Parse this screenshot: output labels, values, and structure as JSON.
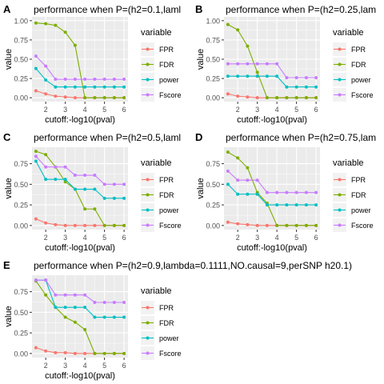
{
  "series_colors": {
    "FPR": "#F8766D",
    "FDR": "#7CAE00",
    "power": "#00BFC4",
    "Fscore": "#C77CFF"
  },
  "legend_title": "variable",
  "chart_data": [
    {
      "type": "line",
      "panel_letter": "A",
      "title": "performance when P=(h2=0.1,laml",
      "xlabel": "cutoff:-log10(pval)",
      "ylabel": "value",
      "xlim": [
        1.3,
        6.2
      ],
      "ylim": [
        -0.05,
        1.05
      ],
      "xticks": [
        2,
        3,
        4,
        5,
        6
      ],
      "yticks": [
        0.0,
        0.25,
        0.5,
        0.75,
        1.0
      ],
      "ytick_labels": [
        "0.00",
        "0.25",
        "0.50",
        "0.75",
        "1.00"
      ],
      "x": [
        1.5,
        2,
        2.5,
        3,
        3.5,
        4,
        4.5,
        5,
        5.5,
        6
      ],
      "series": [
        {
          "name": "FPR",
          "values": [
            0.09,
            0.05,
            0.02,
            0.01,
            0.0,
            0.0,
            0.0,
            0.0,
            0.0,
            0.0
          ]
        },
        {
          "name": "FDR",
          "values": [
            0.97,
            0.96,
            0.94,
            0.85,
            0.68,
            0.0,
            0.0,
            0.0,
            0.0,
            0.0
          ]
        },
        {
          "name": "power",
          "values": [
            0.38,
            0.23,
            0.14,
            0.14,
            0.14,
            0.14,
            0.14,
            0.14,
            0.14,
            0.14
          ]
        },
        {
          "name": "Fscore",
          "values": [
            0.54,
            0.41,
            0.24,
            0.24,
            0.24,
            0.24,
            0.24,
            0.24,
            0.24,
            0.24
          ]
        }
      ]
    },
    {
      "type": "line",
      "panel_letter": "B",
      "title": "performance when P=(h2=0.25,lam",
      "xlabel": "cutoff:-log10(pval)",
      "ylabel": "value",
      "xlim": [
        1.3,
        6.2
      ],
      "ylim": [
        -0.05,
        1.05
      ],
      "xticks": [
        2,
        3,
        4,
        5,
        6
      ],
      "yticks": [
        0.0,
        0.25,
        0.5,
        0.75,
        1.0
      ],
      "ytick_labels": [
        "0.00",
        "0.25",
        "0.50",
        "0.75",
        "1.00"
      ],
      "x": [
        1.5,
        2,
        2.5,
        3,
        3.5,
        4,
        4.5,
        5,
        5.5,
        6
      ],
      "series": [
        {
          "name": "FPR",
          "values": [
            0.05,
            0.02,
            0.01,
            0.0,
            0.0,
            0.0,
            0.0,
            0.0,
            0.0,
            0.0
          ]
        },
        {
          "name": "FDR",
          "values": [
            0.95,
            0.88,
            0.67,
            0.33,
            0.0,
            0.0,
            0.0,
            0.0,
            0.0,
            0.0
          ]
        },
        {
          "name": "power",
          "values": [
            0.28,
            0.28,
            0.28,
            0.28,
            0.28,
            0.28,
            0.14,
            0.14,
            0.14,
            0.14
          ]
        },
        {
          "name": "Fscore",
          "values": [
            0.44,
            0.44,
            0.44,
            0.44,
            0.44,
            0.44,
            0.26,
            0.26,
            0.26,
            0.26
          ]
        }
      ]
    },
    {
      "type": "line",
      "panel_letter": "C",
      "title": "performance when P=(h2=0.5,laml",
      "xlabel": "cutoff:-log10(pval)",
      "ylabel": "value",
      "xlim": [
        1.3,
        6.2
      ],
      "ylim": [
        -0.05,
        0.95
      ],
      "xticks": [
        2,
        3,
        4,
        5,
        6
      ],
      "yticks": [
        0.0,
        0.25,
        0.5,
        0.75
      ],
      "ytick_labels": [
        "0.00",
        "0.25",
        "0.50",
        "0.75"
      ],
      "x": [
        1.5,
        2,
        2.5,
        3,
        3.5,
        4,
        4.5,
        5,
        5.5,
        6
      ],
      "series": [
        {
          "name": "FPR",
          "values": [
            0.08,
            0.03,
            0.01,
            0.0,
            0.0,
            0.0,
            0.0,
            0.0,
            0.0,
            0.0
          ]
        },
        {
          "name": "FDR",
          "values": [
            0.9,
            0.86,
            0.71,
            0.53,
            0.44,
            0.2,
            0.2,
            0.0,
            0.0,
            0.0
          ]
        },
        {
          "name": "power",
          "values": [
            0.78,
            0.56,
            0.56,
            0.56,
            0.44,
            0.44,
            0.44,
            0.33,
            0.33,
            0.33
          ]
        },
        {
          "name": "Fscore",
          "values": [
            0.84,
            0.71,
            0.71,
            0.71,
            0.61,
            0.61,
            0.61,
            0.5,
            0.5,
            0.5
          ]
        }
      ]
    },
    {
      "type": "line",
      "panel_letter": "D",
      "title": "performance when P=(h2=0.75,lam",
      "xlabel": "cutoff:-log10(pval)",
      "ylabel": "value",
      "xlim": [
        1.3,
        6.2
      ],
      "ylim": [
        -0.05,
        0.95
      ],
      "xticks": [
        2,
        3,
        4,
        5,
        6
      ],
      "yticks": [
        0.0,
        0.25,
        0.5,
        0.75
      ],
      "ytick_labels": [
        "0.00",
        "0.25",
        "0.50",
        "0.75"
      ],
      "x": [
        1.5,
        2,
        2.5,
        3,
        3.5,
        4,
        4.5,
        5,
        5.5,
        6
      ],
      "series": [
        {
          "name": "FPR",
          "values": [
            0.04,
            0.02,
            0.01,
            0.0,
            0.0,
            0.0,
            0.0,
            0.0,
            0.0,
            0.0
          ]
        },
        {
          "name": "FDR",
          "values": [
            0.89,
            0.82,
            0.7,
            0.4,
            0.27,
            0.0,
            0.0,
            0.0,
            0.0,
            0.0
          ]
        },
        {
          "name": "power",
          "values": [
            0.5,
            0.38,
            0.38,
            0.38,
            0.25,
            0.25,
            0.25,
            0.25,
            0.25,
            0.25
          ]
        },
        {
          "name": "Fscore",
          "values": [
            0.66,
            0.55,
            0.55,
            0.55,
            0.4,
            0.4,
            0.4,
            0.4,
            0.4,
            0.4
          ]
        }
      ]
    },
    {
      "type": "line",
      "panel_letter": "E",
      "title": "performance when P=(h2=0.9,lambda=0.1111,NO.causal=9,perSNP h20.1)",
      "xlabel": "cutoff:-log10(pval)",
      "ylabel": "value",
      "xlim": [
        1.3,
        6.2
      ],
      "ylim": [
        -0.05,
        0.95
      ],
      "xticks": [
        2,
        3,
        4,
        5,
        6
      ],
      "yticks": [
        0.0,
        0.25,
        0.5,
        0.75
      ],
      "ytick_labels": [
        "0.00",
        "0.25",
        "0.50",
        "0.75"
      ],
      "x": [
        1.5,
        2,
        2.5,
        3,
        3.5,
        4,
        4.5,
        5,
        5.5,
        6
      ],
      "series": [
        {
          "name": "FPR",
          "values": [
            0.07,
            0.03,
            0.01,
            0.01,
            0.0,
            0.0,
            0.0,
            0.0,
            0.0,
            0.0
          ]
        },
        {
          "name": "FDR",
          "values": [
            0.88,
            0.71,
            0.56,
            0.44,
            0.38,
            0.29,
            0.0,
            0.0,
            0.0,
            0.0
          ]
        },
        {
          "name": "power",
          "values": [
            0.89,
            0.89,
            0.56,
            0.56,
            0.56,
            0.56,
            0.44,
            0.44,
            0.44,
            0.44
          ]
        },
        {
          "name": "Fscore",
          "values": [
            0.89,
            0.89,
            0.71,
            0.71,
            0.71,
            0.71,
            0.62,
            0.62,
            0.62,
            0.62
          ]
        }
      ]
    }
  ]
}
